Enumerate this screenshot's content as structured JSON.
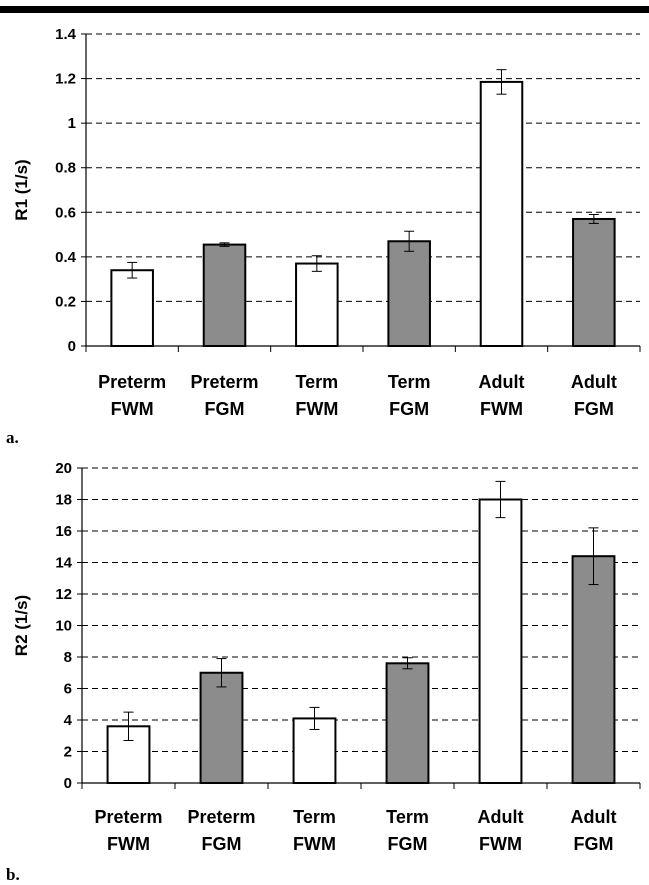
{
  "chart_data": [
    {
      "type": "bar",
      "panel_label": "a.",
      "ylabel": "R1 (1/s)",
      "ylim": [
        0,
        1.4
      ],
      "yticks": [
        0,
        0.2,
        0.4,
        0.6,
        0.8,
        1,
        1.2,
        1.4
      ],
      "ytick_labels": [
        "0",
        "0.2",
        "0.4",
        "0.6",
        "0.8",
        "1",
        "1.2",
        "1.4"
      ],
      "grid": true,
      "categories": [
        [
          "Preterm",
          "FWM"
        ],
        [
          "Preterm",
          "FGM"
        ],
        [
          "Term",
          "FWM"
        ],
        [
          "Term",
          "FGM"
        ],
        [
          "Adult",
          "FWM"
        ],
        [
          "Adult",
          "FGM"
        ]
      ],
      "values": [
        0.34,
        0.455,
        0.37,
        0.47,
        1.185,
        0.57
      ],
      "errors": [
        0.035,
        0.008,
        0.035,
        0.045,
        0.055,
        0.02
      ],
      "fills": [
        "#ffffff",
        "#8c8c8c",
        "#ffffff",
        "#8c8c8c",
        "#ffffff",
        "#8c8c8c"
      ]
    },
    {
      "type": "bar",
      "panel_label": "b.",
      "ylabel": "R2 (1/s)",
      "ylim": [
        0,
        20
      ],
      "yticks": [
        0,
        2,
        4,
        6,
        8,
        10,
        12,
        14,
        16,
        18,
        20
      ],
      "ytick_labels": [
        "0",
        "2",
        "4",
        "6",
        "8",
        "10",
        "12",
        "14",
        "16",
        "18",
        "20"
      ],
      "grid": true,
      "categories": [
        [
          "Preterm",
          "FWM"
        ],
        [
          "Preterm",
          "FGM"
        ],
        [
          "Term",
          "FWM"
        ],
        [
          "Term",
          "FGM"
        ],
        [
          "Adult",
          "FWM"
        ],
        [
          "Adult",
          "FGM"
        ]
      ],
      "values": [
        3.6,
        7.0,
        4.1,
        7.6,
        18.0,
        14.4
      ],
      "errors": [
        0.9,
        0.9,
        0.7,
        0.35,
        1.15,
        1.8
      ],
      "fills": [
        "#ffffff",
        "#8c8c8c",
        "#ffffff",
        "#8c8c8c",
        "#ffffff",
        "#8c8c8c"
      ]
    }
  ]
}
